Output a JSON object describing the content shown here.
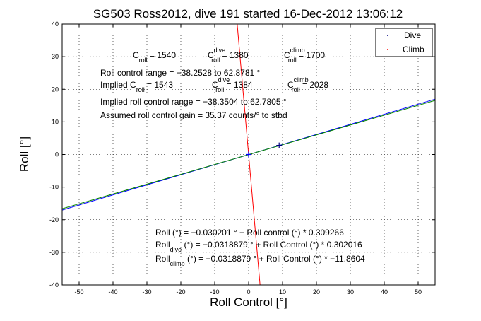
{
  "chart_data": {
    "type": "line",
    "title": "SG503 Ross2012, dive 191 started 16-Dec-2012 13:06:12",
    "xlabel": "Roll Control [°]",
    "ylabel": "Roll [°]",
    "xlim": [
      -55,
      55
    ],
    "ylim": [
      -40,
      40
    ],
    "xticks": [
      -50,
      -40,
      -30,
      -20,
      -10,
      0,
      10,
      20,
      30,
      40,
      50
    ],
    "yticks": [
      -40,
      -30,
      -20,
      -10,
      0,
      10,
      20,
      30,
      40
    ],
    "grid": true,
    "legend_position": "top-right",
    "legend": [
      {
        "name": "Dive",
        "color": "#000080"
      },
      {
        "name": "Climb",
        "color": "#ff0000"
      }
    ],
    "series": [
      {
        "name": "Roll (°) = −0.030201 ° + Roll control (°) * 0.309266",
        "color": "#0000ff",
        "intercept": -0.030201,
        "slope": 0.309266
      },
      {
        "name": "Dive",
        "color": "#008000",
        "intercept": -0.0318879,
        "slope": 0.302016
      },
      {
        "name": "Climb",
        "color": "#ff0000",
        "intercept": -0.0318879,
        "slope": -11.8604
      }
    ],
    "markers": [
      {
        "x": 0,
        "y": 0,
        "color": "#0000ff"
      },
      {
        "x": 9,
        "y": 2.8,
        "color": "#000080"
      }
    ],
    "annotations": {
      "c_roll_line": [
        {
          "main": "C",
          "sub": "roll",
          "sup": "",
          "value": " = 1540"
        },
        {
          "main": "C",
          "sub": "roll",
          "sup": "dive",
          "value": " = 1380"
        },
        {
          "main": "C",
          "sub": "roll",
          "sup": "climb",
          "value": " = 1700"
        }
      ],
      "roll_control_range": "Roll control range = −38.2528 to 62.8781 °",
      "implied_line": [
        {
          "main": "Implied C",
          "sub": "roll",
          "sup": "",
          "value": " = 1543"
        },
        {
          "main": "C",
          "sub": "roll",
          "sup": "dive",
          "value": " = 1384"
        },
        {
          "main": "C",
          "sub": "roll",
          "sup": "climb",
          "value": " = 2028"
        }
      ],
      "implied_range": "Implied roll control range = −38.3504 to 62.7805 °",
      "assumed_gain": "Assumed roll control gain = 35.37 counts/° to stbd",
      "fit_all": "Roll (°) = −0.030201 ° + Roll control (°) * 0.309266",
      "fit_dive": {
        "main": "Roll",
        "sub": "dive",
        "rest": " (°) = −0.0318879 ° + Roll Control (°) * 0.302016"
      },
      "fit_climb": {
        "main": "Roll",
        "sub": "climb",
        "rest": " (°) = −0.0318879 ° + Roll Control (°) * −11.8604"
      }
    }
  }
}
